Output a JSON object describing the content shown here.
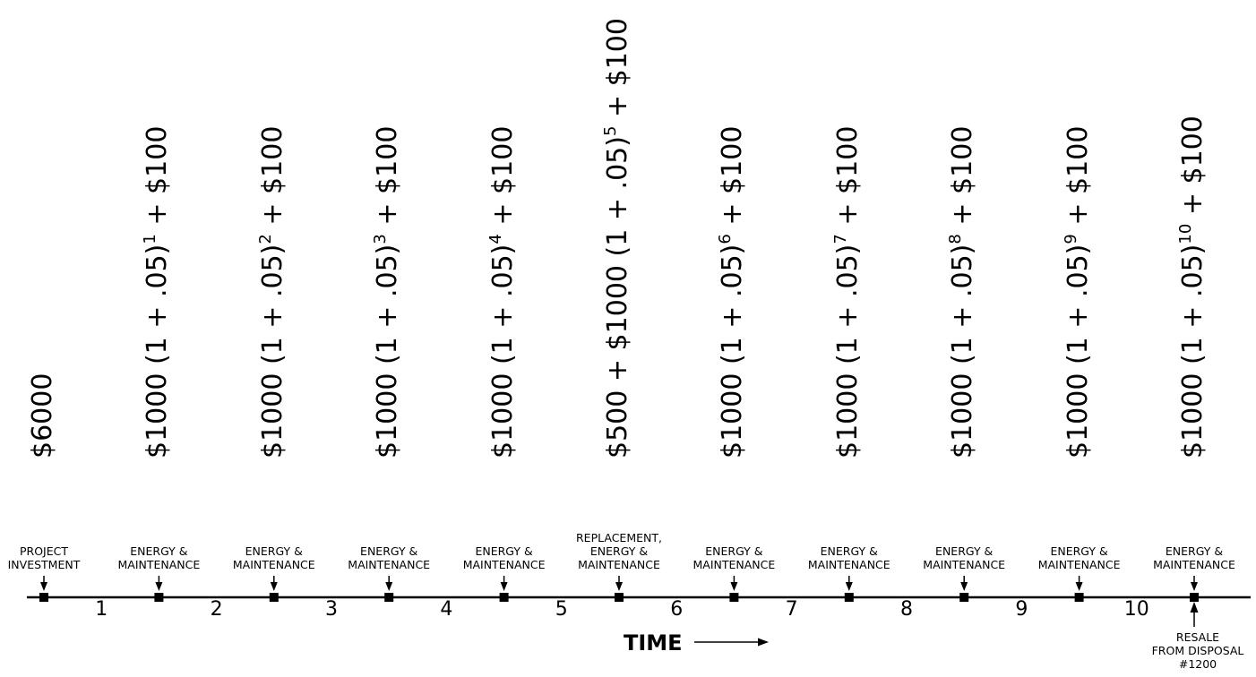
{
  "points": [
    {
      "label_lines": [
        "PROJECT",
        "INVESTMENT"
      ],
      "formula": [
        {
          "t": "$6000"
        }
      ]
    },
    {
      "label_lines": [
        "ENERGY &",
        "MAINTENANCE"
      ],
      "formula": [
        {
          "t": "$1000 (1 + .05)"
        },
        {
          "sup": "1"
        },
        {
          "t": " + $100"
        }
      ]
    },
    {
      "label_lines": [
        "ENERGY &",
        "MAINTENANCE"
      ],
      "formula": [
        {
          "t": "$1000 (1 + .05)"
        },
        {
          "sup": "2"
        },
        {
          "t": " + $100"
        }
      ]
    },
    {
      "label_lines": [
        "ENERGY &",
        "MAINTENANCE"
      ],
      "formula": [
        {
          "t": "$1000 (1 + .05)"
        },
        {
          "sup": "3"
        },
        {
          "t": " + $100"
        }
      ]
    },
    {
      "label_lines": [
        "ENERGY &",
        "MAINTENANCE"
      ],
      "formula": [
        {
          "t": "$1000 (1 + .05)"
        },
        {
          "sup": "4"
        },
        {
          "t": " + $100"
        }
      ]
    },
    {
      "label_lines": [
        "REPLACEMENT,",
        "ENERGY &",
        "MAINTENANCE"
      ],
      "formula": [
        {
          "t": "$500 + $1000 (1 + .05)"
        },
        {
          "sup": "5"
        },
        {
          "t": " + $100"
        }
      ]
    },
    {
      "label_lines": [
        "ENERGY &",
        "MAINTENANCE"
      ],
      "formula": [
        {
          "t": "$1000 (1 + .05)"
        },
        {
          "sup": "6"
        },
        {
          "t": " + $100"
        }
      ]
    },
    {
      "label_lines": [
        "ENERGY &",
        "MAINTENANCE"
      ],
      "formula": [
        {
          "t": "$1000 (1 + .05)"
        },
        {
          "sup": "7"
        },
        {
          "t": " + $100"
        }
      ]
    },
    {
      "label_lines": [
        "ENERGY &",
        "MAINTENANCE"
      ],
      "formula": [
        {
          "t": "$1000 (1 + .05)"
        },
        {
          "sup": "8"
        },
        {
          "t": " + $100"
        }
      ]
    },
    {
      "label_lines": [
        "ENERGY &",
        "MAINTENANCE"
      ],
      "formula": [
        {
          "t": "$1000 (1 + .05)"
        },
        {
          "sup": "9"
        },
        {
          "t": " + $100"
        }
      ]
    },
    {
      "label_lines": [
        "ENERGY &",
        "MAINTENANCE"
      ],
      "formula": [
        {
          "t": "$1000 (1 + .05)"
        },
        {
          "sup": "10"
        },
        {
          "t": " + $100"
        }
      ]
    }
  ],
  "periods": [
    "1",
    "2",
    "3",
    "4",
    "5",
    "6",
    "7",
    "8",
    "9",
    "10"
  ],
  "time_label": "TIME",
  "resale_lines": [
    "RESALE",
    "FROM DISPOSAL",
    "#1200"
  ]
}
